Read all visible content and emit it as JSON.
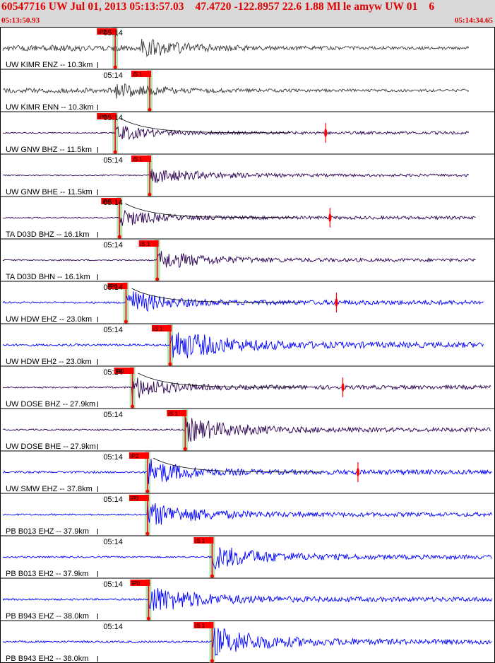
{
  "header": {
    "title": "60547716 UW Jul 01, 2013 05:13:57.03    47.4720 -122.8957 22.6 1.88 Ml le amyw UW 01    6",
    "start_time": "05:13:50.93",
    "end_time": "05:14:34.65"
  },
  "colors": {
    "header_bg": "#d9d9d9",
    "header_text": "#e00000",
    "pick": "#ff0000",
    "pick_band": "#a8dca8",
    "trace_broadband": "#2a0050",
    "trace_shortperiod": "#0000ff",
    "coda_fit": "#000000"
  },
  "chart_data": {
    "type": "seismogram",
    "time_axis": {
      "start": "05:13:50.93",
      "end": "05:14:34.65",
      "tick_label": "05:14",
      "tick_time_s": 9.07
    },
    "traces": [
      {
        "name": "UW KIMR ENZ -- 10.3km",
        "pick_label": "iP2",
        "pick_time_s": 10.7,
        "event_time_s": 13.1,
        "amplitude": 0.55,
        "color": "gray",
        "coda": false,
        "end_time_s": 43.6
      },
      {
        "name": "UW KIMR ENN -- 10.3km",
        "pick_label": "iS 1",
        "pick_time_s": 13.9,
        "event_time_s": 10.7,
        "amplitude": 0.45,
        "color": "gray",
        "coda": false,
        "end_time_s": 43.6
      },
      {
        "name": "UW GNW BHZ -- 11.5km",
        "pick_label": "iP0",
        "pick_time_s": 10.7,
        "event_time_s": 10.7,
        "amplitude": 0.5,
        "color": "broadband",
        "coda": true,
        "end_time_s": 43.6
      },
      {
        "name": "UW GNW BHE -- 11.5km",
        "pick_label": "iS 1",
        "pick_time_s": 13.9,
        "event_time_s": 13.9,
        "amplitude": 0.45,
        "color": "broadband",
        "coda": false,
        "end_time_s": 43.6
      },
      {
        "name": "TA D03D BHZ -- 16.1km",
        "pick_label": "iP0",
        "pick_time_s": 11.1,
        "event_time_s": 11.1,
        "amplitude": 0.55,
        "color": "broadband",
        "coda": true,
        "end_time_s": 44.2
      },
      {
        "name": "TA D03D BHN -- 16.1km",
        "pick_label": "iS 1",
        "pick_time_s": 14.6,
        "event_time_s": 14.6,
        "amplitude": 0.55,
        "color": "broadband",
        "coda": false,
        "end_time_s": 44.2
      },
      {
        "name": "UW HDW EHZ -- 23.0km",
        "pick_label": "iP0",
        "pick_time_s": 11.7,
        "event_time_s": 11.7,
        "amplitude": 0.8,
        "color": "shortperiod",
        "coda": true,
        "end_time_s": 44.9
      },
      {
        "name": "UW HDW EH2 -- 23.0km",
        "pick_label": "iS 1",
        "pick_time_s": 15.8,
        "event_time_s": 15.8,
        "amplitude": 0.95,
        "color": "shortperiod",
        "coda": false,
        "end_time_s": 44.9
      },
      {
        "name": "UW DOSE BHZ -- 27.9km",
        "pick_label": "iP0",
        "pick_time_s": 12.3,
        "event_time_s": 12.3,
        "amplitude": 0.7,
        "color": "broadband",
        "coda": true,
        "end_time_s": 45.6
      },
      {
        "name": "UW DOSE BHE -- 27.9km",
        "pick_label": "iS 1",
        "pick_time_s": 17.2,
        "event_time_s": 17.2,
        "amplitude": 0.7,
        "color": "broadband",
        "coda": false,
        "end_time_s": 45.6
      },
      {
        "name": "UW SMW EHZ -- 37.8km",
        "pick_label": "iP2",
        "pick_time_s": 13.7,
        "event_time_s": 13.7,
        "amplitude": 0.85,
        "color": "shortperiod",
        "coda": true,
        "end_time_s": 46.9
      },
      {
        "name": "PB B013 EHZ -- 37.9km",
        "pick_label": "iP0",
        "pick_time_s": 13.7,
        "event_time_s": 13.7,
        "amplitude": 0.7,
        "color": "shortperiod",
        "coda": false,
        "end_time_s": 46.9
      },
      {
        "name": "PB B013 EH2 -- 37.9km",
        "pick_label": "iS 1",
        "pick_time_s": 19.7,
        "event_time_s": 19.7,
        "amplitude": 0.7,
        "color": "shortperiod",
        "coda": false,
        "end_time_s": 46.9
      },
      {
        "name": "PB B943 EHZ -- 38.0km",
        "pick_label": "iP0",
        "pick_time_s": 13.8,
        "event_time_s": 13.8,
        "amplitude": 0.8,
        "color": "shortperiod",
        "coda": false,
        "end_time_s": 46.9
      },
      {
        "name": "PB B943 EH2 -- 38.0km",
        "pick_label": "iS 1",
        "pick_time_s": 19.7,
        "event_time_s": 19.7,
        "amplitude": 0.85,
        "color": "shortperiod",
        "coda": false,
        "end_time_s": 46.9
      }
    ]
  }
}
